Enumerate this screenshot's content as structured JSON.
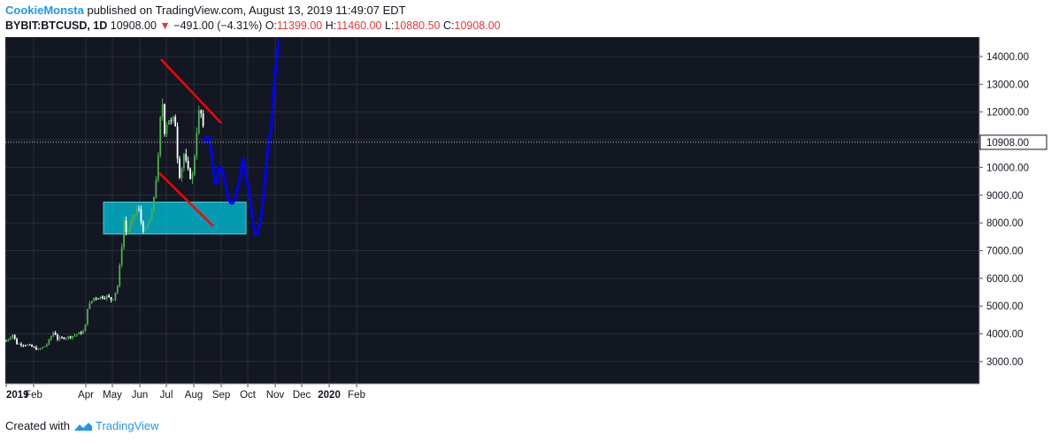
{
  "header": {
    "author": "CookieMonsta",
    "published_text": "published on TradingView.com, August 13, 2019 11:49:07 EDT",
    "symbol": "BYBIT:BTCUSD, 1D",
    "last": "10908.00",
    "change": "−491.00 (−4.31%)",
    "o_label": "O:",
    "o_value": "11399.00",
    "h_label": "H:",
    "h_value": "11460.00",
    "l_label": "L:",
    "l_value": "10880.50",
    "c_label": "C:",
    "c_value": "10908.00"
  },
  "footer": {
    "created_with": "Created with",
    "brand": "TradingView"
  },
  "colors": {
    "background": "#131722",
    "grid": "#2a2e39",
    "up_candle": "#4caf50",
    "down_candle": "#ffffff",
    "channel_lines": "#ff0000",
    "projection": "#0000ff",
    "support_zone": "#00bcd4",
    "last_price_badge": "#ffffff"
  },
  "chart_data": {
    "type": "candlestick",
    "symbol": "BYBIT:BTCUSD",
    "interval": "1D",
    "ylim": [
      2200,
      14700
    ],
    "y_ticks": [
      "14000.00",
      "13000.00",
      "12000.00",
      "11000.00",
      "10000.00",
      "9000.00",
      "8000.00",
      "7000.00",
      "6000.00",
      "5000.00",
      "4000.00",
      "3000.00"
    ],
    "last_price_label": "10908.00",
    "last_price": 10908,
    "x_ticks": [
      "2019",
      "Feb",
      "Apr",
      "May",
      "Jun",
      "Jul",
      "Aug",
      "Sep",
      "Oct",
      "Nov",
      "Dec",
      "2020",
      "Feb"
    ],
    "close_path": [
      [
        "2019-01-01",
        3750
      ],
      [
        "2019-01-09",
        4000
      ],
      [
        "2019-01-12",
        3650
      ],
      [
        "2019-01-25",
        3600
      ],
      [
        "2019-02-07",
        3420
      ],
      [
        "2019-02-16",
        3620
      ],
      [
        "2019-02-24",
        4100
      ],
      [
        "2019-02-28",
        3820
      ],
      [
        "2019-03-15",
        3900
      ],
      [
        "2019-03-31",
        4100
      ],
      [
        "2019-04-02",
        4900
      ],
      [
        "2019-04-10",
        5300
      ],
      [
        "2019-04-25",
        5350
      ],
      [
        "2019-05-01",
        5200
      ],
      [
        "2019-05-07",
        5750
      ],
      [
        "2019-05-11",
        6950
      ],
      [
        "2019-05-14",
        8100
      ],
      [
        "2019-05-17",
        7600
      ],
      [
        "2019-05-22",
        8000
      ],
      [
        "2019-05-30",
        8600
      ],
      [
        "2019-06-04",
        7800
      ],
      [
        "2019-06-07",
        7700
      ],
      [
        "2019-06-14",
        8250
      ],
      [
        "2019-06-18",
        9200
      ],
      [
        "2019-06-22",
        10400
      ],
      [
        "2019-06-26",
        12800
      ],
      [
        "2019-06-28",
        11200
      ],
      [
        "2019-07-03",
        11800
      ],
      [
        "2019-07-08",
        11500
      ],
      [
        "2019-07-10",
        12100
      ],
      [
        "2019-07-14",
        10200
      ],
      [
        "2019-07-17",
        9500
      ],
      [
        "2019-07-20",
        10600
      ],
      [
        "2019-07-25",
        9900
      ],
      [
        "2019-07-30",
        9550
      ],
      [
        "2019-08-03",
        10800
      ],
      [
        "2019-08-06",
        12000
      ],
      [
        "2019-08-10",
        11900
      ],
      [
        "2019-08-13",
        10908
      ]
    ],
    "annotations": {
      "upper_channel": [
        [
          "2019-06-25",
          13900
        ],
        [
          "2019-09-01",
          11600
        ]
      ],
      "lower_channel": [
        [
          "2019-06-23",
          9800
        ],
        [
          "2019-08-23",
          7880
        ]
      ],
      "support_zone": {
        "x": [
          "2019-04-21",
          "2019-09-29"
        ],
        "y": [
          7600,
          8750
        ]
      },
      "projection": [
        [
          "2019-08-13",
          10900
        ],
        [
          "2019-08-17",
          11100
        ],
        [
          "2019-08-21",
          10600
        ],
        [
          "2019-08-24",
          9700
        ],
        [
          "2019-08-27",
          9400
        ],
        [
          "2019-08-30",
          10000
        ],
        [
          "2019-09-02",
          9900
        ],
        [
          "2019-09-05",
          9500
        ],
        [
          "2019-09-09",
          8900
        ],
        [
          "2019-09-13",
          8700
        ],
        [
          "2019-09-17",
          8900
        ],
        [
          "2019-09-22",
          9600
        ],
        [
          "2019-09-26",
          10300
        ],
        [
          "2019-09-29",
          9700
        ],
        [
          "2019-10-03",
          9000
        ],
        [
          "2019-10-08",
          7800
        ],
        [
          "2019-10-11",
          7600
        ],
        [
          "2019-10-15",
          8000
        ],
        [
          "2019-10-19",
          9000
        ],
        [
          "2019-10-24",
          10700
        ],
        [
          "2019-10-27",
          11300
        ],
        [
          "2019-10-29",
          12000
        ],
        [
          "2019-10-31",
          13000
        ],
        [
          "2019-11-03",
          14000
        ],
        [
          "2019-11-05",
          14600
        ]
      ]
    }
  }
}
